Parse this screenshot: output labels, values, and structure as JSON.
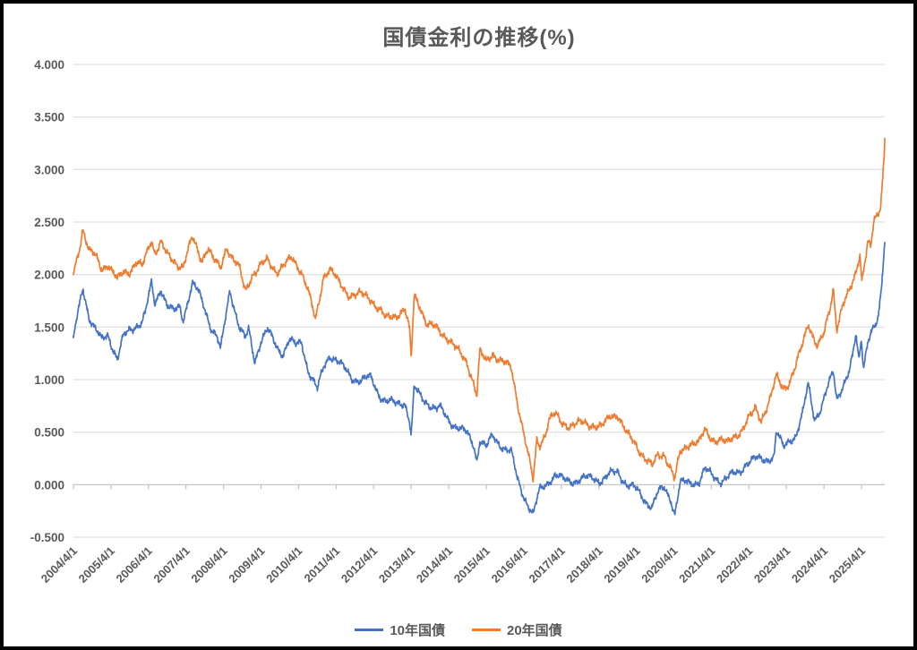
{
  "window": {
    "background": "#ffffff",
    "border_color": "#000000"
  },
  "chart_data": {
    "type": "line",
    "title": "国債金利の推移(%)",
    "xlabel": "",
    "ylabel": "",
    "grid": true,
    "legend_position": "bottom",
    "y_axis_range": [
      -0.5,
      4.0
    ],
    "y_tick_step": 0.5,
    "y_ticks": [
      {
        "value": 4.0,
        "label": "4.000"
      },
      {
        "value": 3.5,
        "label": "3.500"
      },
      {
        "value": 3.0,
        "label": "3.000"
      },
      {
        "value": 2.5,
        "label": "2.500"
      },
      {
        "value": 2.0,
        "label": "2.000"
      },
      {
        "value": 1.5,
        "label": "1.500"
      },
      {
        "value": 1.0,
        "label": "1.000"
      },
      {
        "value": 0.5,
        "label": "0.500"
      },
      {
        "value": 0.0,
        "label": "0.000"
      },
      {
        "value": -0.5,
        "label": "-0.500"
      }
    ],
    "x_tick_labels": [
      "2004/4/1",
      "2005/4/1",
      "2006/4/1",
      "2007/4/1",
      "2008/4/1",
      "2009/4/1",
      "2010/4/1",
      "2011/4/1",
      "2012/4/1",
      "2013/4/1",
      "2014/4/1",
      "2015/4/1",
      "2016/4/1",
      "2017/4/1",
      "2018/4/1",
      "2019/4/1",
      "2020/4/1",
      "2021/4/1",
      "2022/4/1",
      "2023/4/1",
      "2024/4/1",
      "2025/4/1"
    ],
    "x_range_years": [
      0,
      21.62
    ],
    "colors": {
      "grid": "#d9d9d9",
      "axis_line": "#bfbfbf",
      "label_text": "#595959",
      "title_text": "#595959"
    },
    "series": [
      {
        "name": "10年国債",
        "color": "#4472C4",
        "jitter": [
          0.028,
          0.016,
          0.013
        ],
        "jitter_phase": 1.0,
        "points": [
          [
            0,
            1.4
          ],
          [
            0.17,
            1.72
          ],
          [
            0.25,
            1.88
          ],
          [
            0.42,
            1.6
          ],
          [
            0.58,
            1.48
          ],
          [
            0.75,
            1.37
          ],
          [
            0.92,
            1.43
          ],
          [
            1.08,
            1.28
          ],
          [
            1.17,
            1.2
          ],
          [
            1.33,
            1.4
          ],
          [
            1.5,
            1.47
          ],
          [
            1.67,
            1.52
          ],
          [
            1.83,
            1.55
          ],
          [
            1.92,
            1.64
          ],
          [
            2.08,
            1.91
          ],
          [
            2.17,
            1.72
          ],
          [
            2.33,
            1.88
          ],
          [
            2.5,
            1.7
          ],
          [
            2.67,
            1.64
          ],
          [
            2.83,
            1.7
          ],
          [
            2.92,
            1.58
          ],
          [
            3.17,
            1.91
          ],
          [
            3.33,
            1.83
          ],
          [
            3.5,
            1.68
          ],
          [
            3.67,
            1.5
          ],
          [
            3.83,
            1.4
          ],
          [
            3.92,
            1.27
          ],
          [
            4.17,
            1.86
          ],
          [
            4.42,
            1.5
          ],
          [
            4.58,
            1.38
          ],
          [
            4.67,
            1.47
          ],
          [
            4.83,
            1.18
          ],
          [
            5,
            1.38
          ],
          [
            5.17,
            1.47
          ],
          [
            5.42,
            1.31
          ],
          [
            5.58,
            1.25
          ],
          [
            5.75,
            1.38
          ],
          [
            5.92,
            1.32
          ],
          [
            6.08,
            1.36
          ],
          [
            6.25,
            1.1
          ],
          [
            6.5,
            0.9
          ],
          [
            6.67,
            1.12
          ],
          [
            6.83,
            1.24
          ],
          [
            7,
            1.19
          ],
          [
            7.17,
            1.12
          ],
          [
            7.42,
            1.02
          ],
          [
            7.67,
            0.99
          ],
          [
            7.92,
            1.02
          ],
          [
            8.17,
            0.85
          ],
          [
            8.33,
            0.79
          ],
          [
            8.58,
            0.77
          ],
          [
            8.83,
            0.79
          ],
          [
            8.96,
            0.6
          ],
          [
            9.0,
            0.45
          ],
          [
            9.08,
            0.92
          ],
          [
            9.25,
            0.84
          ],
          [
            9.42,
            0.79
          ],
          [
            9.67,
            0.71
          ],
          [
            9.75,
            0.73
          ],
          [
            10,
            0.62
          ],
          [
            10.25,
            0.54
          ],
          [
            10.5,
            0.48
          ],
          [
            10.67,
            0.38
          ],
          [
            10.75,
            0.24
          ],
          [
            10.83,
            0.43
          ],
          [
            11,
            0.35
          ],
          [
            11.17,
            0.46
          ],
          [
            11.42,
            0.37
          ],
          [
            11.67,
            0.3
          ],
          [
            11.83,
            0.05
          ],
          [
            12,
            -0.1
          ],
          [
            12.25,
            -0.29
          ],
          [
            12.42,
            -0.06
          ],
          [
            12.67,
            0.04
          ],
          [
            12.83,
            0.09
          ],
          [
            13.08,
            0.04
          ],
          [
            13.33,
            0.04
          ],
          [
            13.58,
            0.05
          ],
          [
            13.83,
            0.07
          ],
          [
            14.08,
            0.04
          ],
          [
            14.33,
            0.1
          ],
          [
            14.5,
            0.13
          ],
          [
            14.75,
            0.0
          ],
          [
            15,
            -0.05
          ],
          [
            15.25,
            -0.15
          ],
          [
            15.42,
            -0.21
          ],
          [
            15.58,
            -0.08
          ],
          [
            15.75,
            -0.03
          ],
          [
            15.92,
            -0.13
          ],
          [
            16.02,
            -0.28
          ],
          [
            16.17,
            0.01
          ],
          [
            16.42,
            0.02
          ],
          [
            16.67,
            0.03
          ],
          [
            16.83,
            0.14
          ],
          [
            17,
            0.09
          ],
          [
            17.25,
            0.04
          ],
          [
            17.5,
            0.08
          ],
          [
            17.75,
            0.12
          ],
          [
            17.92,
            0.21
          ],
          [
            18.17,
            0.24
          ],
          [
            18.42,
            0.24
          ],
          [
            18.67,
            0.27
          ],
          [
            18.73,
            0.5
          ],
          [
            18.92,
            0.35
          ],
          [
            19.08,
            0.43
          ],
          [
            19.25,
            0.47
          ],
          [
            19.42,
            0.65
          ],
          [
            19.58,
            0.95
          ],
          [
            19.75,
            0.63
          ],
          [
            19.92,
            0.73
          ],
          [
            20.08,
            0.9
          ],
          [
            20.25,
            1.07
          ],
          [
            20.34,
            0.82
          ],
          [
            20.5,
            0.95
          ],
          [
            20.67,
            1.07
          ],
          [
            20.77,
            1.22
          ],
          [
            20.85,
            1.42
          ],
          [
            20.93,
            1.18
          ],
          [
            21,
            1.4
          ],
          [
            21.05,
            1.13
          ],
          [
            21.17,
            1.38
          ],
          [
            21.25,
            1.46
          ],
          [
            21.38,
            1.5
          ],
          [
            21.45,
            1.58
          ],
          [
            21.52,
            1.8
          ],
          [
            21.58,
            2.1
          ],
          [
            21.6,
            2.22
          ],
          [
            21.62,
            2.31
          ]
        ]
      },
      {
        "name": "20年国債",
        "color": "#ED7D31",
        "jitter": [
          0.03,
          0.018,
          0.014
        ],
        "jitter_phase": 2.6,
        "points": [
          [
            0,
            2.0
          ],
          [
            0.17,
            2.28
          ],
          [
            0.25,
            2.45
          ],
          [
            0.42,
            2.22
          ],
          [
            0.58,
            2.17
          ],
          [
            0.75,
            2.06
          ],
          [
            0.92,
            2.11
          ],
          [
            1.08,
            2.0
          ],
          [
            1.17,
            1.94
          ],
          [
            1.33,
            2.02
          ],
          [
            1.5,
            2.04
          ],
          [
            1.67,
            2.12
          ],
          [
            1.83,
            2.06
          ],
          [
            2.08,
            2.34
          ],
          [
            2.17,
            2.22
          ],
          [
            2.33,
            2.31
          ],
          [
            2.5,
            2.17
          ],
          [
            2.67,
            2.13
          ],
          [
            2.92,
            2.08
          ],
          [
            3.17,
            2.34
          ],
          [
            3.42,
            2.15
          ],
          [
            3.58,
            2.26
          ],
          [
            3.75,
            2.12
          ],
          [
            3.92,
            2.06
          ],
          [
            4.08,
            2.28
          ],
          [
            4.25,
            2.15
          ],
          [
            4.42,
            2.05
          ],
          [
            4.58,
            1.84
          ],
          [
            4.75,
            2.0
          ],
          [
            5,
            2.08
          ],
          [
            5.17,
            2.13
          ],
          [
            5.42,
            2.04
          ],
          [
            5.67,
            2.1
          ],
          [
            5.83,
            2.15
          ],
          [
            6.08,
            2.04
          ],
          [
            6.25,
            1.85
          ],
          [
            6.45,
            1.55
          ],
          [
            6.67,
            2.0
          ],
          [
            6.83,
            2.06
          ],
          [
            7.08,
            1.91
          ],
          [
            7.33,
            1.82
          ],
          [
            7.67,
            1.8
          ],
          [
            7.92,
            1.78
          ],
          [
            8.17,
            1.66
          ],
          [
            8.33,
            1.57
          ],
          [
            8.58,
            1.62
          ],
          [
            8.83,
            1.67
          ],
          [
            8.96,
            1.45
          ],
          [
            9.0,
            1.18
          ],
          [
            9.08,
            1.8
          ],
          [
            9.25,
            1.7
          ],
          [
            9.42,
            1.53
          ],
          [
            9.67,
            1.48
          ],
          [
            10,
            1.4
          ],
          [
            10.25,
            1.26
          ],
          [
            10.5,
            1.16
          ],
          [
            10.67,
            0.97
          ],
          [
            10.75,
            0.85
          ],
          [
            10.83,
            1.26
          ],
          [
            11,
            1.16
          ],
          [
            11.17,
            1.26
          ],
          [
            11.42,
            1.17
          ],
          [
            11.67,
            1.1
          ],
          [
            11.83,
            0.8
          ],
          [
            12,
            0.5
          ],
          [
            12.25,
            0.03
          ],
          [
            12.35,
            0.42
          ],
          [
            12.42,
            0.38
          ],
          [
            12.58,
            0.5
          ],
          [
            12.67,
            0.62
          ],
          [
            12.83,
            0.66
          ],
          [
            13,
            0.59
          ],
          [
            13.25,
            0.57
          ],
          [
            13.58,
            0.58
          ],
          [
            13.83,
            0.58
          ],
          [
            14.08,
            0.54
          ],
          [
            14.33,
            0.66
          ],
          [
            14.5,
            0.68
          ],
          [
            14.75,
            0.47
          ],
          [
            15,
            0.38
          ],
          [
            15.25,
            0.25
          ],
          [
            15.42,
            0.16
          ],
          [
            15.58,
            0.28
          ],
          [
            15.75,
            0.3
          ],
          [
            15.92,
            0.15
          ],
          [
            16.02,
            0.04
          ],
          [
            16.17,
            0.3
          ],
          [
            16.42,
            0.41
          ],
          [
            16.67,
            0.39
          ],
          [
            16.83,
            0.51
          ],
          [
            17,
            0.45
          ],
          [
            17.25,
            0.42
          ],
          [
            17.42,
            0.38
          ],
          [
            17.58,
            0.46
          ],
          [
            17.83,
            0.53
          ],
          [
            18.08,
            0.66
          ],
          [
            18.17,
            0.73
          ],
          [
            18.33,
            0.63
          ],
          [
            18.58,
            0.82
          ],
          [
            18.73,
            1.02
          ],
          [
            18.92,
            0.93
          ],
          [
            19.08,
            0.98
          ],
          [
            19.25,
            1.12
          ],
          [
            19.42,
            1.32
          ],
          [
            19.58,
            1.55
          ],
          [
            19.83,
            1.31
          ],
          [
            20,
            1.42
          ],
          [
            20.17,
            1.7
          ],
          [
            20.25,
            1.88
          ],
          [
            20.34,
            1.5
          ],
          [
            20.5,
            1.7
          ],
          [
            20.67,
            1.82
          ],
          [
            20.83,
            2.0
          ],
          [
            20.96,
            2.22
          ],
          [
            21.01,
            1.95
          ],
          [
            21.17,
            2.3
          ],
          [
            21.25,
            2.24
          ],
          [
            21.33,
            2.5
          ],
          [
            21.42,
            2.55
          ],
          [
            21.5,
            2.65
          ],
          [
            21.56,
            2.9
          ],
          [
            21.59,
            3.1
          ],
          [
            21.6,
            3.05
          ],
          [
            21.62,
            3.31
          ]
        ]
      }
    ]
  }
}
